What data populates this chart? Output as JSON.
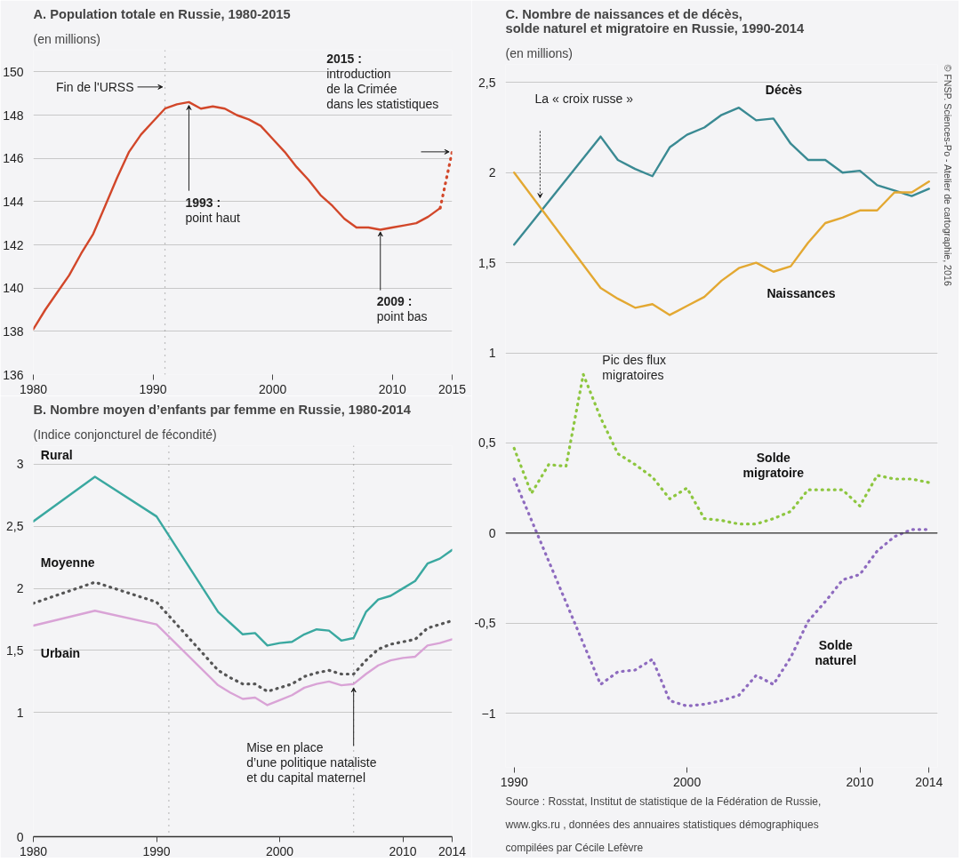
{
  "chart_data": [
    {
      "type": "line",
      "title": "A. Population totale en Russie, 1980-2015",
      "subtitle": "(en millions)",
      "xlim": [
        1980,
        2015
      ],
      "xticks": [
        1980,
        1990,
        2000,
        2010,
        2015
      ],
      "ylim": [
        136,
        151
      ],
      "yticks": [
        136,
        138,
        140,
        142,
        144,
        146,
        148,
        150
      ],
      "grid": "y",
      "series": [
        {
          "color": "#d2472a",
          "line_style": "solid",
          "x": [
            1980,
            1981,
            1982,
            1983,
            1984,
            1985,
            1986,
            1987,
            1988,
            1989,
            1990,
            1991,
            1992,
            1993,
            1994,
            1995,
            1996,
            1997,
            1998,
            1999,
            2000,
            2001,
            2002,
            2003,
            2004,
            2005,
            2006,
            2007,
            2008,
            2009,
            2010,
            2011,
            2012,
            2013,
            2014
          ],
          "values": [
            138.1,
            139.0,
            139.8,
            140.6,
            141.6,
            142.5,
            143.8,
            145.1,
            146.3,
            147.1,
            147.7,
            148.3,
            148.5,
            148.6,
            148.3,
            148.4,
            148.3,
            148.0,
            147.8,
            147.5,
            146.9,
            146.3,
            145.6,
            145.0,
            144.3,
            143.8,
            143.2,
            142.8,
            142.8,
            142.7,
            142.8,
            142.9,
            143.0,
            143.3,
            143.7
          ]
        },
        {
          "color": "#d2472a",
          "line_style": "dotted",
          "x": [
            2014,
            2015
          ],
          "values": [
            143.7,
            146.3
          ]
        }
      ],
      "ref_lines": [
        {
          "axis": "x",
          "value": 1991,
          "label": "Fin de l'URSS",
          "line_style": "dotted",
          "color": "#888888"
        }
      ],
      "annotations": [
        {
          "text": "1993 :\npoint haut",
          "x": 1993,
          "y": 148.6
        },
        {
          "text": "2009 :\npoint bas",
          "x": 2009,
          "y": 142.7
        },
        "2015 :\nintroduction\nde la Crimée\ndans les statistiques"
      ]
    },
    {
      "type": "line",
      "title": "B. Nombre moyen d’enfants par femme en Russie, 1980-2014",
      "subtitle": "(Indice conjoncturel de fécondité)",
      "x": [
        1980,
        1985,
        1990,
        1995,
        1996,
        1997,
        1998,
        1999,
        2000,
        2001,
        2002,
        2003,
        2004,
        2005,
        2006,
        2007,
        2008,
        2009,
        2010,
        2011,
        2012,
        2013,
        2014
      ],
      "xlim": [
        1980,
        2014
      ],
      "xticks": [
        1980,
        1990,
        2000,
        2010,
        2014
      ],
      "ylim": [
        0,
        3.15
      ],
      "yticks": [
        0,
        1,
        {
          "value": 1.5,
          "label": "1,5"
        },
        2,
        {
          "value": 2.5,
          "label": "2,5"
        },
        3
      ],
      "grid": "y",
      "series": [
        {
          "name": "Rural",
          "color": "#3aa8a0",
          "line_style": "solid",
          "values": [
            2.54,
            2.9,
            2.58,
            1.81,
            1.72,
            1.63,
            1.64,
            1.54,
            1.56,
            1.57,
            1.63,
            1.67,
            1.66,
            1.58,
            1.6,
            1.81,
            1.91,
            1.94,
            2.0,
            2.06,
            2.2,
            2.24,
            2.31
          ]
        },
        {
          "name": "Moyenne",
          "color": "#555555",
          "line_style": "dotted",
          "values": [
            1.88,
            2.05,
            1.89,
            1.34,
            1.28,
            1.23,
            1.23,
            1.17,
            1.2,
            1.23,
            1.29,
            1.32,
            1.34,
            1.31,
            1.31,
            1.42,
            1.51,
            1.55,
            1.57,
            1.59,
            1.68,
            1.71,
            1.74
          ]
        },
        {
          "name": "Urbain",
          "color": "#d9a3d6",
          "line_style": "solid",
          "values": [
            1.7,
            1.82,
            1.71,
            1.22,
            1.16,
            1.11,
            1.12,
            1.06,
            1.1,
            1.14,
            1.2,
            1.23,
            1.25,
            1.22,
            1.23,
            1.31,
            1.38,
            1.42,
            1.44,
            1.45,
            1.54,
            1.56,
            1.59
          ]
        }
      ],
      "ref_lines": [
        {
          "axis": "x",
          "value": 1991,
          "line_style": "dotted",
          "color": "#888888"
        },
        {
          "axis": "x",
          "value": 2006,
          "label": "Mise en place\nd’une politique nataliste\net du capital maternel",
          "line_style": "dotted",
          "color": "#888888"
        }
      ]
    },
    {
      "type": "line",
      "title": "C. Nombre de naissances et de décès,\nsolde naturel et migratoire en Russie, 1990-2014",
      "subtitle": "(en millions)",
      "xlim": [
        1989.5,
        2014.5
      ],
      "xticks": [
        1990,
        2000,
        2010,
        2014
      ],
      "ylim": [
        -1.3,
        2.6
      ],
      "yticks": [
        -1,
        {
          "value": -0.5,
          "label": "-0,5"
        },
        0,
        {
          "value": 0.5,
          "label": "0,5"
        },
        1,
        {
          "value": 1.5,
          "label": "1,5"
        },
        2,
        {
          "value": 2.5,
          "label": "2,5"
        }
      ],
      "grid": "y",
      "series": [
        {
          "name": "Décès",
          "color": "#3a8a93",
          "line_style": "solid",
          "x": [
            1990,
            1995,
            1996,
            1997,
            1998,
            1999,
            2000,
            2001,
            2002,
            2003,
            2004,
            2005,
            2006,
            2007,
            2008,
            2009,
            2010,
            2011,
            2012,
            2013,
            2014
          ],
          "values": [
            1.6,
            2.2,
            2.07,
            2.02,
            1.98,
            2.14,
            2.21,
            2.25,
            2.32,
            2.36,
            2.29,
            2.3,
            2.16,
            2.07,
            2.07,
            2.0,
            2.01,
            1.93,
            1.9,
            1.87,
            1.91
          ]
        },
        {
          "name": "Naissances",
          "color": "#e3a832",
          "line_style": "solid",
          "x": [
            1990,
            1995,
            1996,
            1997,
            1998,
            1999,
            2000,
            2001,
            2002,
            2003,
            2004,
            2005,
            2006,
            2007,
            2008,
            2009,
            2010,
            2011,
            2012,
            2013,
            2014
          ],
          "values": [
            2.0,
            1.36,
            1.3,
            1.25,
            1.27,
            1.21,
            1.26,
            1.31,
            1.4,
            1.47,
            1.5,
            1.45,
            1.48,
            1.61,
            1.72,
            1.75,
            1.79,
            1.79,
            1.89,
            1.89,
            1.95
          ]
        },
        {
          "name": "Solde\nmigratoire",
          "color": "#8dc63f",
          "line_style": "dotted",
          "x": [
            1990,
            1991,
            1992,
            1993,
            1994,
            1995,
            1996,
            1997,
            1998,
            1999,
            2000,
            2001,
            2002,
            2003,
            2004,
            2005,
            2006,
            2007,
            2008,
            2009,
            2010,
            2011,
            2012,
            2013,
            2014
          ],
          "values": [
            0.47,
            0.22,
            0.38,
            0.37,
            0.88,
            0.64,
            0.44,
            0.38,
            0.31,
            0.19,
            0.25,
            0.08,
            0.07,
            0.05,
            0.05,
            0.08,
            0.12,
            0.24,
            0.24,
            0.24,
            0.15,
            0.32,
            0.3,
            0.3,
            0.28
          ]
        },
        {
          "name": "Solde\nnaturel",
          "color": "#8e6bbf",
          "line_style": "dotted",
          "x": [
            1990,
            1995,
            1996,
            1997,
            1998,
            1999,
            2000,
            2001,
            2002,
            2003,
            2004,
            2005,
            2006,
            2007,
            2008,
            2009,
            2010,
            2011,
            2012,
            2013,
            2014
          ],
          "values": [
            0.3,
            -0.84,
            -0.77,
            -0.76,
            -0.7,
            -0.93,
            -0.96,
            -0.95,
            -0.93,
            -0.9,
            -0.79,
            -0.84,
            -0.69,
            -0.49,
            -0.38,
            -0.26,
            -0.23,
            -0.1,
            -0.02,
            0.02,
            0.02
          ]
        }
      ],
      "ref_lines": [
        {
          "axis": "y",
          "value": 0,
          "line_style": "solid",
          "color": "#333333"
        }
      ],
      "annotations": [
        "La « croix russe »",
        {
          "text": "Pic des flux\nmigratoires",
          "x": 1994,
          "y": 0.88
        },
        "Source : Rosstat, Institut de statistique de la Fédération de Russie,\nwww.gks.ru , données des annuaires statistiques démographiques\ncompilées par Cécile Lefèvre",
        "© FNSP. Sciences-Po - Atelier de cartographie, 2016"
      ]
    }
  ]
}
